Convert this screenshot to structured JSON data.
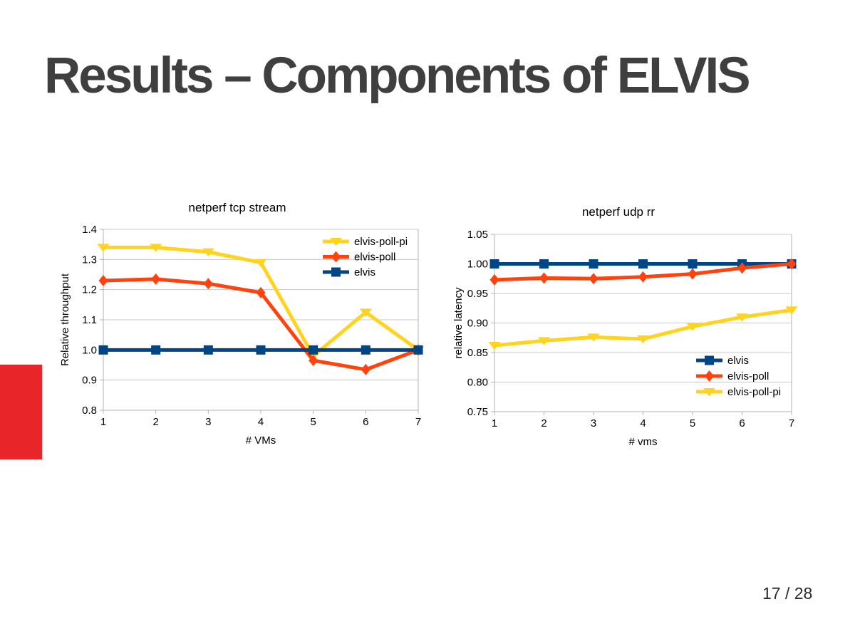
{
  "slide": {
    "title": "Results – Components of ELVIS",
    "page_number": "17 / 28"
  },
  "theme": {
    "accent_red": "#e8262a",
    "title_color": "#3f3f3f",
    "text_color": "#000000",
    "grid_color": "#c9c9c9",
    "axis_color": "#b3b3b3",
    "series_blue": "#004586",
    "series_red": "#ff420e",
    "series_yellow": "#ffd320"
  },
  "chart_data": [
    {
      "type": "line",
      "title": "netperf tcp stream",
      "xlabel": "# VMs",
      "ylabel": "Relative throughput",
      "x": [
        1,
        2,
        3,
        4,
        5,
        6,
        7
      ],
      "xtick_labels": [
        "1",
        "2",
        "3",
        "4",
        "5",
        "6",
        "7"
      ],
      "ylim": [
        0.8,
        1.4
      ],
      "yticks": [
        1.4,
        1.3,
        1.2,
        1.1,
        1.0,
        0.9,
        0.8
      ],
      "ytick_labels": [
        "1.4",
        "1.3",
        "1.2",
        "1.1",
        "1.0",
        "0.9",
        "0.8"
      ],
      "grid": "horizontal",
      "legend_position": "top-right",
      "series": [
        {
          "name": "elvis-poll-pi",
          "color": "#ffd320",
          "marker": "triangle-down",
          "values": [
            1.34,
            1.34,
            1.325,
            1.29,
            0.98,
            1.125,
            1.0
          ]
        },
        {
          "name": "elvis-poll",
          "color": "#ff420e",
          "marker": "diamond",
          "values": [
            1.23,
            1.235,
            1.22,
            1.19,
            0.965,
            0.935,
            1.0
          ]
        },
        {
          "name": "elvis",
          "color": "#004586",
          "marker": "square",
          "values": [
            1.0,
            1.0,
            1.0,
            1.0,
            1.0,
            1.0,
            1.0
          ]
        }
      ]
    },
    {
      "type": "line",
      "title": "netperf udp rr",
      "xlabel": "# vms",
      "ylabel": "relative latency",
      "x": [
        1,
        2,
        3,
        4,
        5,
        6,
        7
      ],
      "xtick_labels": [
        "1",
        "2",
        "3",
        "4",
        "5",
        "6",
        "7"
      ],
      "ylim": [
        0.75,
        1.05
      ],
      "yticks": [
        1.05,
        1.0,
        0.95,
        0.9,
        0.85,
        0.8,
        0.75
      ],
      "ytick_labels": [
        "1.05",
        "1.00",
        "0.95",
        "0.90",
        "0.85",
        "0.80",
        "0.75"
      ],
      "grid": "horizontal",
      "legend_position": "bottom-right",
      "series": [
        {
          "name": "elvis",
          "color": "#004586",
          "marker": "square",
          "values": [
            1.0,
            1.0,
            1.0,
            1.0,
            1.0,
            1.0,
            1.0
          ]
        },
        {
          "name": "elvis-poll",
          "color": "#ff420e",
          "marker": "diamond",
          "values": [
            0.973,
            0.976,
            0.975,
            0.978,
            0.983,
            0.993,
            1.0
          ]
        },
        {
          "name": "elvis-poll-pi",
          "color": "#ffd320",
          "marker": "triangle-down",
          "values": [
            0.862,
            0.87,
            0.876,
            0.873,
            0.894,
            0.91,
            0.922
          ]
        }
      ]
    }
  ]
}
